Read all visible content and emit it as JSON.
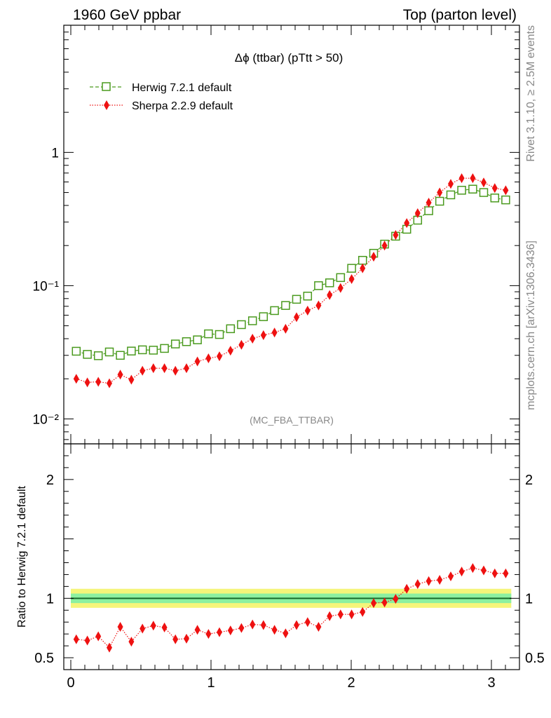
{
  "header": {
    "left": "1960 GeV ppbar",
    "right": "Top (parton level)"
  },
  "side_labels": {
    "rivet": "Rivet 3.1.10, ≥ 2.5M events",
    "mcplots": "mcplots.cern.ch [arXiv:1306.3436]"
  },
  "colors": {
    "herwig": "#4a9a1e",
    "sherpa": "#ee1111",
    "band_outer": "#f5f57a",
    "band_inner": "#8cf0a0",
    "ref_line": "#1a6b2a"
  },
  "chart_data": [
    {
      "type": "scatter",
      "title": "Δϕ (ttbar) (pTtt > 50)",
      "watermark": "(MC_FBA_TTBAR)",
      "yscale": "log",
      "xlim": [
        -0.05,
        3.2
      ],
      "ylim": [
        0.0065,
        9.0
      ],
      "ytick_labels": [
        "10⁻²",
        "10⁻¹",
        "1"
      ],
      "legend": [
        "Herwig 7.2.1 default",
        "Sherpa 2.2.9 default"
      ],
      "legend_position": "top-left",
      "x": [
        0.039,
        0.118,
        0.196,
        0.275,
        0.353,
        0.432,
        0.511,
        0.589,
        0.668,
        0.746,
        0.825,
        0.903,
        0.982,
        1.06,
        1.139,
        1.217,
        1.296,
        1.374,
        1.453,
        1.532,
        1.61,
        1.689,
        1.767,
        1.846,
        1.924,
        2.003,
        2.081,
        2.16,
        2.238,
        2.317,
        2.396,
        2.474,
        2.553,
        2.631,
        2.71,
        2.788,
        2.867,
        2.945,
        3.024,
        3.102
      ],
      "series": [
        {
          "name": "Herwig 7.2.1 default",
          "marker": "open-square",
          "line": "dashed",
          "values": [
            0.0322,
            0.0305,
            0.0298,
            0.0318,
            0.03,
            0.0323,
            0.033,
            0.0328,
            0.0338,
            0.0365,
            0.038,
            0.0392,
            0.0435,
            0.043,
            0.0475,
            0.051,
            0.0545,
            0.0585,
            0.065,
            0.071,
            0.079,
            0.0835,
            0.1,
            0.105,
            0.115,
            0.135,
            0.155,
            0.175,
            0.205,
            0.235,
            0.265,
            0.31,
            0.365,
            0.43,
            0.48,
            0.52,
            0.53,
            0.5,
            0.455,
            0.44
          ]
        },
        {
          "name": "Sherpa 2.2.9 default",
          "marker": "filled-diamond",
          "line": "dotted",
          "values": [
            0.02,
            0.0188,
            0.019,
            0.0185,
            0.0215,
            0.0197,
            0.023,
            0.024,
            0.024,
            0.023,
            0.024,
            0.027,
            0.0285,
            0.0295,
            0.0325,
            0.036,
            0.04,
            0.0425,
            0.0445,
            0.0475,
            0.058,
            0.065,
            0.071,
            0.085,
            0.096,
            0.112,
            0.135,
            0.165,
            0.2,
            0.24,
            0.295,
            0.35,
            0.42,
            0.5,
            0.58,
            0.64,
            0.64,
            0.595,
            0.54,
            0.52
          ]
        }
      ]
    },
    {
      "type": "scatter",
      "ylabel": "Ratio to Herwig 7.2.1 default",
      "xlim": [
        -0.05,
        3.2
      ],
      "ylim": [
        0.4,
        2.3
      ],
      "xtick_labels": [
        "0",
        "1",
        "2",
        "3"
      ],
      "ytick_labels": [
        "0.5",
        "1",
        "2"
      ],
      "reference_value": 1.0,
      "band_inner_halfwidth": 0.04,
      "band_outer_halfwidth": 0.08,
      "series": [
        {
          "name": "Sherpa 2.2.9 default",
          "values": [
            0.655,
            0.645,
            0.68,
            0.585,
            0.76,
            0.635,
            0.745,
            0.77,
            0.755,
            0.655,
            0.66,
            0.735,
            0.7,
            0.715,
            0.73,
            0.75,
            0.78,
            0.775,
            0.735,
            0.705,
            0.775,
            0.8,
            0.76,
            0.85,
            0.865,
            0.865,
            0.885,
            0.96,
            0.965,
            0.995,
            1.08,
            1.12,
            1.145,
            1.155,
            1.185,
            1.225,
            1.255,
            1.235,
            1.21,
            1.21
          ],
          "errors": [
            0.03,
            0.03,
            0.03,
            0.035,
            0.03,
            0.03,
            0.03,
            0.03,
            0.03,
            0.03,
            0.03,
            0.025,
            0.025,
            0.025,
            0.025,
            0.025,
            0.025,
            0.025,
            0.02,
            0.02,
            0.02,
            0.02,
            0.02,
            0.015,
            0.015,
            0.015,
            0.015,
            0.012,
            0.012,
            0.012,
            0.012,
            0.012,
            0.012,
            0.012,
            0.012,
            0.012,
            0.012,
            0.012,
            0.012,
            0.012
          ]
        }
      ]
    }
  ]
}
